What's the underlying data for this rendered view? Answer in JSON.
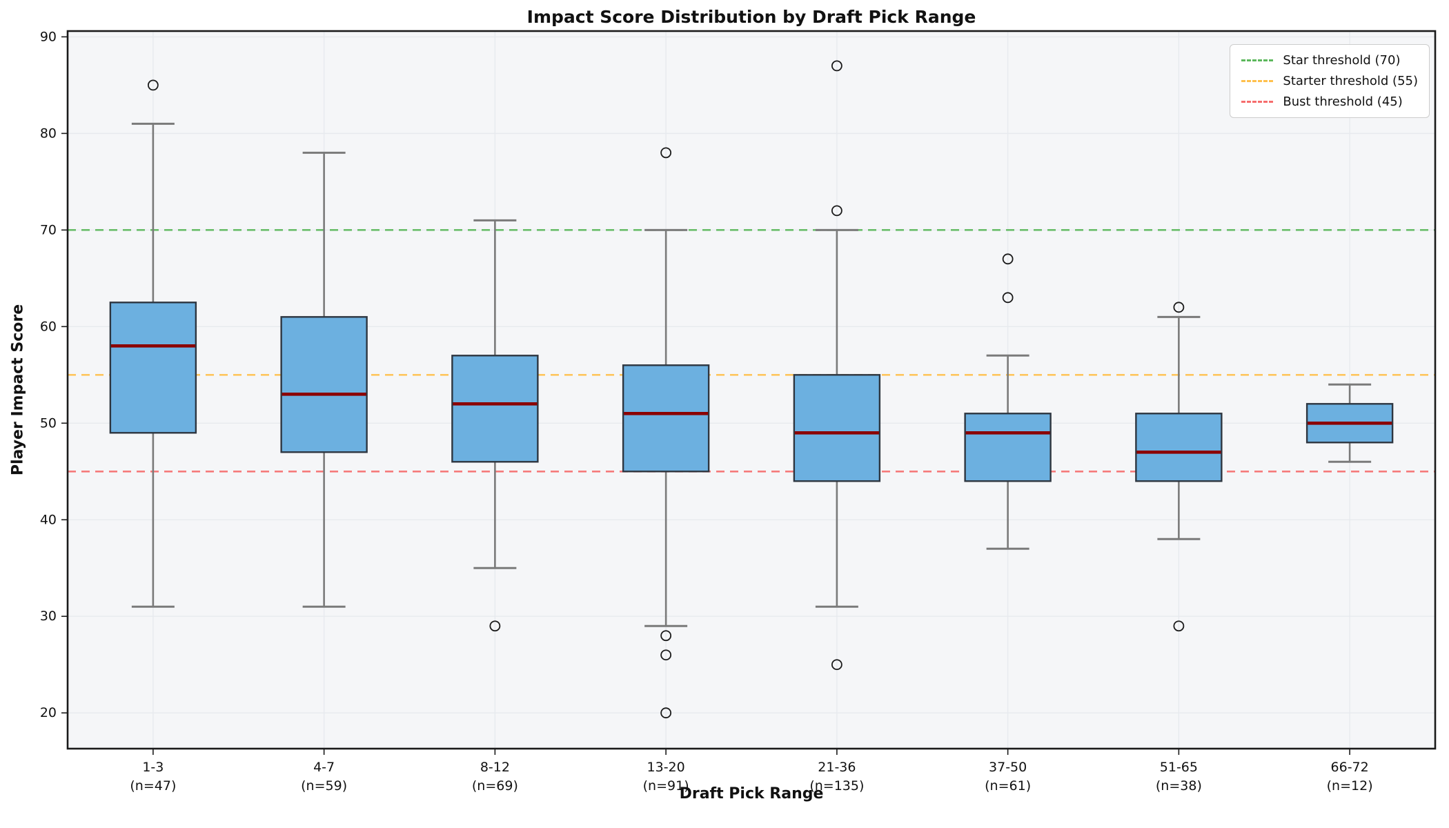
{
  "title": "Impact Score Distribution by Draft Pick Range",
  "chart_data": {
    "type": "boxplot",
    "title": "Impact Score Distribution by Draft Pick Range",
    "xlabel": "Draft Pick Range",
    "ylabel": "Player Impact Score",
    "ylim": [
      16.3,
      90.6
    ],
    "yticks": [
      20,
      30,
      40,
      50,
      60,
      70,
      80,
      90
    ],
    "grid": true,
    "legend_position": "upper right",
    "categories": [
      "1-3",
      "4-7",
      "8-12",
      "13-20",
      "21-36",
      "37-50",
      "51-65",
      "66-72"
    ],
    "sample_sizes": [
      47,
      59,
      69,
      91,
      135,
      61,
      38,
      12
    ],
    "x_tick_labels": [
      [
        "1-3",
        "(n=47)"
      ],
      [
        "4-7",
        "(n=59)"
      ],
      [
        "8-12",
        "(n=69)"
      ],
      [
        "13-20",
        "(n=91)"
      ],
      [
        "21-36",
        "(n=135)"
      ],
      [
        "37-50",
        "(n=61)"
      ],
      [
        "51-65",
        "(n=38)"
      ],
      [
        "66-72",
        "(n=12)"
      ]
    ],
    "boxes": [
      {
        "label": "1-3",
        "n": 47,
        "whisker_low": 31,
        "q1": 49,
        "median": 58,
        "q3": 62.5,
        "whisker_high": 81,
        "outliers": [
          85
        ]
      },
      {
        "label": "4-7",
        "n": 59,
        "whisker_low": 31,
        "q1": 47,
        "median": 53,
        "q3": 61,
        "whisker_high": 78,
        "outliers": []
      },
      {
        "label": "8-12",
        "n": 69,
        "whisker_low": 35,
        "q1": 46,
        "median": 52,
        "q3": 57,
        "whisker_high": 71,
        "outliers": [
          29
        ]
      },
      {
        "label": "13-20",
        "n": 91,
        "whisker_low": 29,
        "q1": 45,
        "median": 51,
        "q3": 56,
        "whisker_high": 70,
        "outliers": [
          78,
          28,
          26,
          20
        ]
      },
      {
        "label": "21-36",
        "n": 135,
        "whisker_low": 31,
        "q1": 44,
        "median": 49,
        "q3": 55,
        "whisker_high": 70,
        "outliers": [
          87,
          72,
          25
        ]
      },
      {
        "label": "37-50",
        "n": 61,
        "whisker_low": 37,
        "q1": 44,
        "median": 49,
        "q3": 51,
        "whisker_high": 57,
        "outliers": [
          67,
          63
        ]
      },
      {
        "label": "51-65",
        "n": 38,
        "whisker_low": 38,
        "q1": 44,
        "median": 47,
        "q3": 51,
        "whisker_high": 61,
        "outliers": [
          62,
          29
        ]
      },
      {
        "label": "66-72",
        "n": 12,
        "whisker_low": 46,
        "q1": 48,
        "median": 50,
        "q3": 52,
        "whisker_high": 54,
        "outliers": []
      }
    ],
    "thresholds": [
      {
        "id": "star",
        "label": "Star threshold (70)",
        "value": 70,
        "color": "#5cb85c"
      },
      {
        "id": "starter",
        "label": "Starter threshold (55)",
        "value": 55,
        "color": "#ffc04d"
      },
      {
        "id": "bust",
        "label": "Bust threshold (45)",
        "value": 45,
        "color": "#f66d6d"
      }
    ]
  },
  "style": {
    "box_fill": "#6cb0e0",
    "box_edge": "#2e3640",
    "median_color": "#8b0000",
    "whisker_color": "#7a7a7a",
    "outlier_edge": "#1a1a1a",
    "plot_background": "#f5f6f8",
    "grid_color": "#e7eaee",
    "spine_color": "#1a1a1a",
    "tick_label_color": "#111111",
    "figure_background": "#ffffff"
  }
}
